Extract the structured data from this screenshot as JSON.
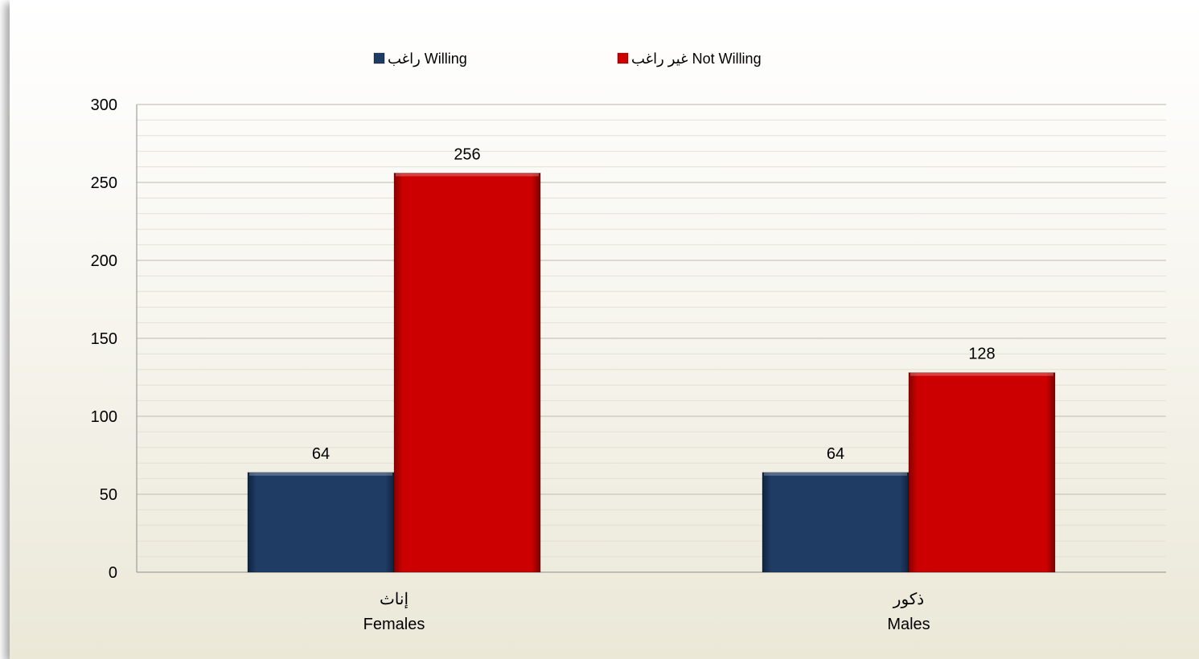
{
  "chart_data": {
    "type": "bar",
    "categories": [
      {
        "ar": "إناث",
        "en": "Females"
      },
      {
        "ar": "ذكور",
        "en": "Males"
      }
    ],
    "series": [
      {
        "name": "راغب Willing",
        "values": [
          64,
          64
        ],
        "color": "#1f3c64"
      },
      {
        "name": "غير راغب Not Willing",
        "values": [
          256,
          128
        ],
        "color": "#cc0000"
      }
    ],
    "ylim": [
      0,
      300
    ],
    "yticks": [
      0,
      50,
      100,
      150,
      200,
      250,
      300
    ],
    "grid": true,
    "legend_position": "top",
    "data_labels": true
  }
}
